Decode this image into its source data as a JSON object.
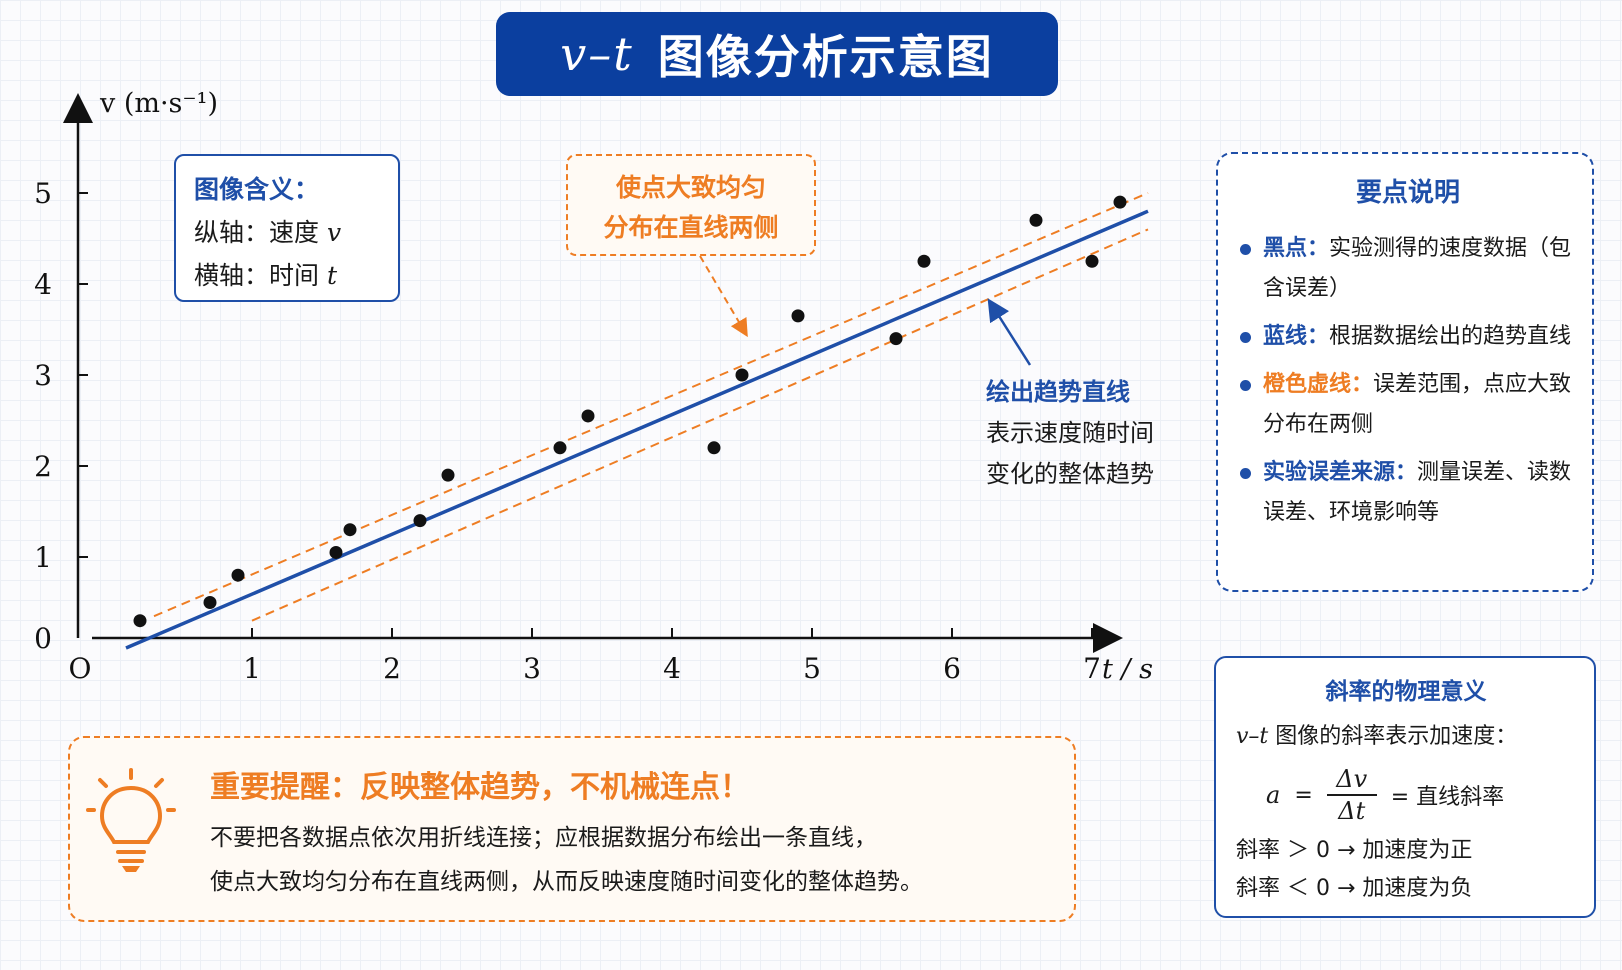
{
  "title": {
    "var": "v–t",
    "text": "图像分析示意图"
  },
  "chart_data": {
    "type": "scatter",
    "xlabel": "t / s",
    "ylabel": "v (m·s⁻¹)",
    "xlim": [
      0,
      7.3
    ],
    "ylim": [
      0,
      5.3
    ],
    "x_ticks": [
      0,
      1,
      2,
      3,
      4,
      5,
      6,
      7
    ],
    "x_tick_labels": [
      "O",
      "1",
      "2",
      "3",
      "4",
      "5",
      "6",
      "7"
    ],
    "y_ticks": [
      0,
      1,
      2,
      3,
      4,
      5
    ],
    "y_tick_labels": [
      "0",
      "1",
      "2",
      "3",
      "4",
      "5"
    ],
    "points": [
      {
        "x": 0.2,
        "y": 0.3
      },
      {
        "x": 0.7,
        "y": 0.5
      },
      {
        "x": 0.9,
        "y": 0.8
      },
      {
        "x": 1.6,
        "y": 1.05
      },
      {
        "x": 1.7,
        "y": 1.3
      },
      {
        "x": 2.2,
        "y": 1.4
      },
      {
        "x": 2.4,
        "y": 1.9
      },
      {
        "x": 3.2,
        "y": 2.2
      },
      {
        "x": 3.4,
        "y": 2.55
      },
      {
        "x": 4.3,
        "y": 2.2
      },
      {
        "x": 4.5,
        "y": 3.0
      },
      {
        "x": 4.9,
        "y": 3.65
      },
      {
        "x": 5.6,
        "y": 3.4
      },
      {
        "x": 5.8,
        "y": 4.25
      },
      {
        "x": 6.6,
        "y": 4.7
      },
      {
        "x": 7.0,
        "y": 4.25
      },
      {
        "x": 7.2,
        "y": 4.9
      }
    ],
    "trend_line": {
      "x": [
        0.1,
        7.4
      ],
      "y": [
        0.0,
        4.8
      ],
      "color": "#1f4fa8"
    },
    "error_band_upper": {
      "x": [
        0.3,
        7.4
      ],
      "y": [
        0.35,
        5.0
      ],
      "color": "#ee7d23"
    },
    "error_band_lower": {
      "x": [
        1.0,
        7.4
      ],
      "y": [
        0.3,
        4.6
      ],
      "color": "#ee7d23"
    },
    "grid": false
  },
  "meaning": {
    "heading": "图像含义：",
    "y_axis": "纵轴：速度",
    "y_var": "v",
    "x_axis": "横轴：时间",
    "x_var": "t"
  },
  "callout": {
    "line1": "使点大致均匀",
    "line2": "分布在直线两侧"
  },
  "trend_label": {
    "heading": "绘出趋势直线",
    "line1": "表示速度随时间",
    "line2": "变化的整体趋势"
  },
  "key_points": {
    "heading": "要点说明",
    "items": [
      {
        "key": "黑点：",
        "text": "实验测得的速度数据（包含误差）"
      },
      {
        "key": "蓝线：",
        "text": "根据数据绘出的趋势直线"
      },
      {
        "key": "橙色虚线：",
        "text": "误差范围，点应大致分布在两侧"
      },
      {
        "key": "实验误差来源：",
        "text": "测量误差、读数误差、环境影响等"
      }
    ]
  },
  "slope": {
    "heading": "斜率的物理意义",
    "intro_var": "v–t",
    "intro_text": "图像的斜率表示加速度：",
    "lhs": "a",
    "num": "Δv",
    "den": "Δt",
    "rhs": "= 直线斜率",
    "pos": "斜率 ＞ 0 → 加速度为正",
    "neg": "斜率 ＜ 0 → 加速度为负"
  },
  "reminder": {
    "title": "重要提醒：反映整体趋势，不机械连点！",
    "line1": "不要把各数据点依次用折线连接；应根据数据分布绘出一条直线，",
    "line2": "使点大致均匀分布在直线两侧，从而反映速度随时间变化的整体趋势。"
  },
  "colors": {
    "blue": "#1f4fa8",
    "navy": "#0b3f9f",
    "orange": "#ee7d23"
  }
}
